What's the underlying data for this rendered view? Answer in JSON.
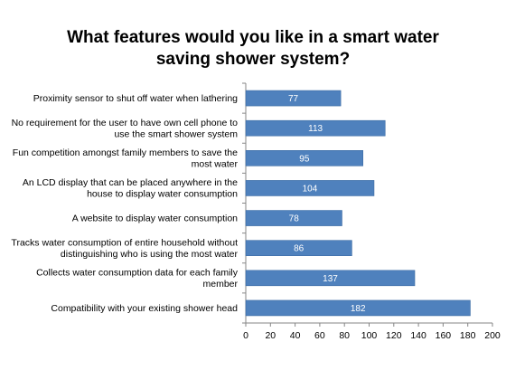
{
  "chart_data": {
    "type": "bar",
    "orientation": "horizontal",
    "title_lines": [
      "What features would you like in a smart water",
      "saving shower system?"
    ],
    "categories": [
      [
        "Proximity sensor to shut off water when lathering"
      ],
      [
        "No requirement for the user to have own cell phone to",
        "use the smart shower system"
      ],
      [
        "Fun competition amongst family members to save the",
        "most water"
      ],
      [
        "An LCD display that can be placed anywhere in the",
        "house to display water consumption"
      ],
      [
        "A website to display water consumption"
      ],
      [
        "Tracks water consumption of entire household without",
        "distinguishing who is using the most water"
      ],
      [
        "Collects water consumption data for each family",
        "member"
      ],
      [
        "Compatibility with your existing shower head"
      ]
    ],
    "values": [
      77,
      113,
      95,
      104,
      78,
      86,
      137,
      182
    ],
    "xlim": [
      0,
      200
    ],
    "xticks": [
      0,
      20,
      40,
      60,
      80,
      100,
      120,
      140,
      160,
      180,
      200
    ],
    "grid": false,
    "legend": "none",
    "colors": {
      "bar": "#4f81bd",
      "bar_border": "#3a6aa3",
      "data_label": "#ffffff",
      "axis": "#868686"
    }
  }
}
